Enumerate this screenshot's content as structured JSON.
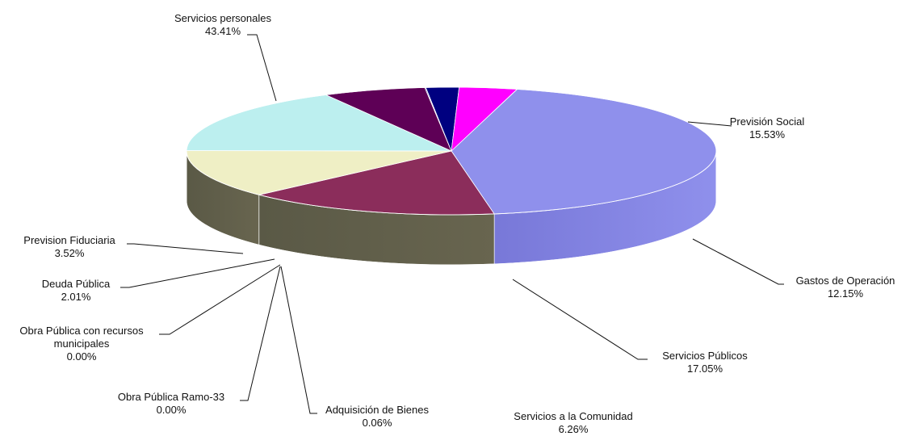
{
  "chart_data": {
    "type": "pie",
    "title": "",
    "subtitle": "",
    "three_d": true,
    "legend": "none",
    "slices": [
      {
        "key": "servicios_personales",
        "label_lines": [
          "Servicios personales"
        ],
        "percent_text": "43.41%",
        "value": 43.41,
        "color": "#8f90ec"
      },
      {
        "key": "prevision_social",
        "label_lines": [
          "Previsión Social"
        ],
        "percent_text": "15.53%",
        "value": 15.53,
        "color": "#8b2d5b"
      },
      {
        "key": "gastos_de_operacion",
        "label_lines": [
          "Gastos de Operación"
        ],
        "percent_text": "12.15%",
        "value": 12.15,
        "color": "#efefc5"
      },
      {
        "key": "servicios_publicos",
        "label_lines": [
          "Servicios Públicos"
        ],
        "percent_text": "17.05%",
        "value": 17.05,
        "color": "#bcefef"
      },
      {
        "key": "servicios_a_la_comunidad",
        "label_lines": [
          "Servicios a la Comunidad"
        ],
        "percent_text": "6.26%",
        "value": 6.26,
        "color": "#5e0056"
      },
      {
        "key": "adquisicion_de_bienes",
        "label_lines": [
          "Adquisición de Bienes"
        ],
        "percent_text": "0.06%",
        "value": 0.06,
        "color": "#1f2aa6"
      },
      {
        "key": "obra_publica_ramo_33",
        "label_lines": [
          "Obra Pública Ramo-33"
        ],
        "percent_text": "0.00%",
        "value": 0.0,
        "color": "#8888ff"
      },
      {
        "key": "obra_publica_con_recursos_municipales",
        "label_lines": [
          "Obra Pública con recursos",
          "municipales"
        ],
        "percent_text": "0.00%",
        "value": 0.0,
        "color": "#6666dd"
      },
      {
        "key": "deuda_publica",
        "label_lines": [
          "Deuda Pública"
        ],
        "percent_text": "2.01%",
        "value": 2.01,
        "color": "#000080"
      },
      {
        "key": "prevision_fiduciaria",
        "label_lines": [
          "Prevision Fiduciaria"
        ],
        "percent_text": "3.52%",
        "value": 3.52,
        "color": "#ff00ff"
      }
    ]
  }
}
